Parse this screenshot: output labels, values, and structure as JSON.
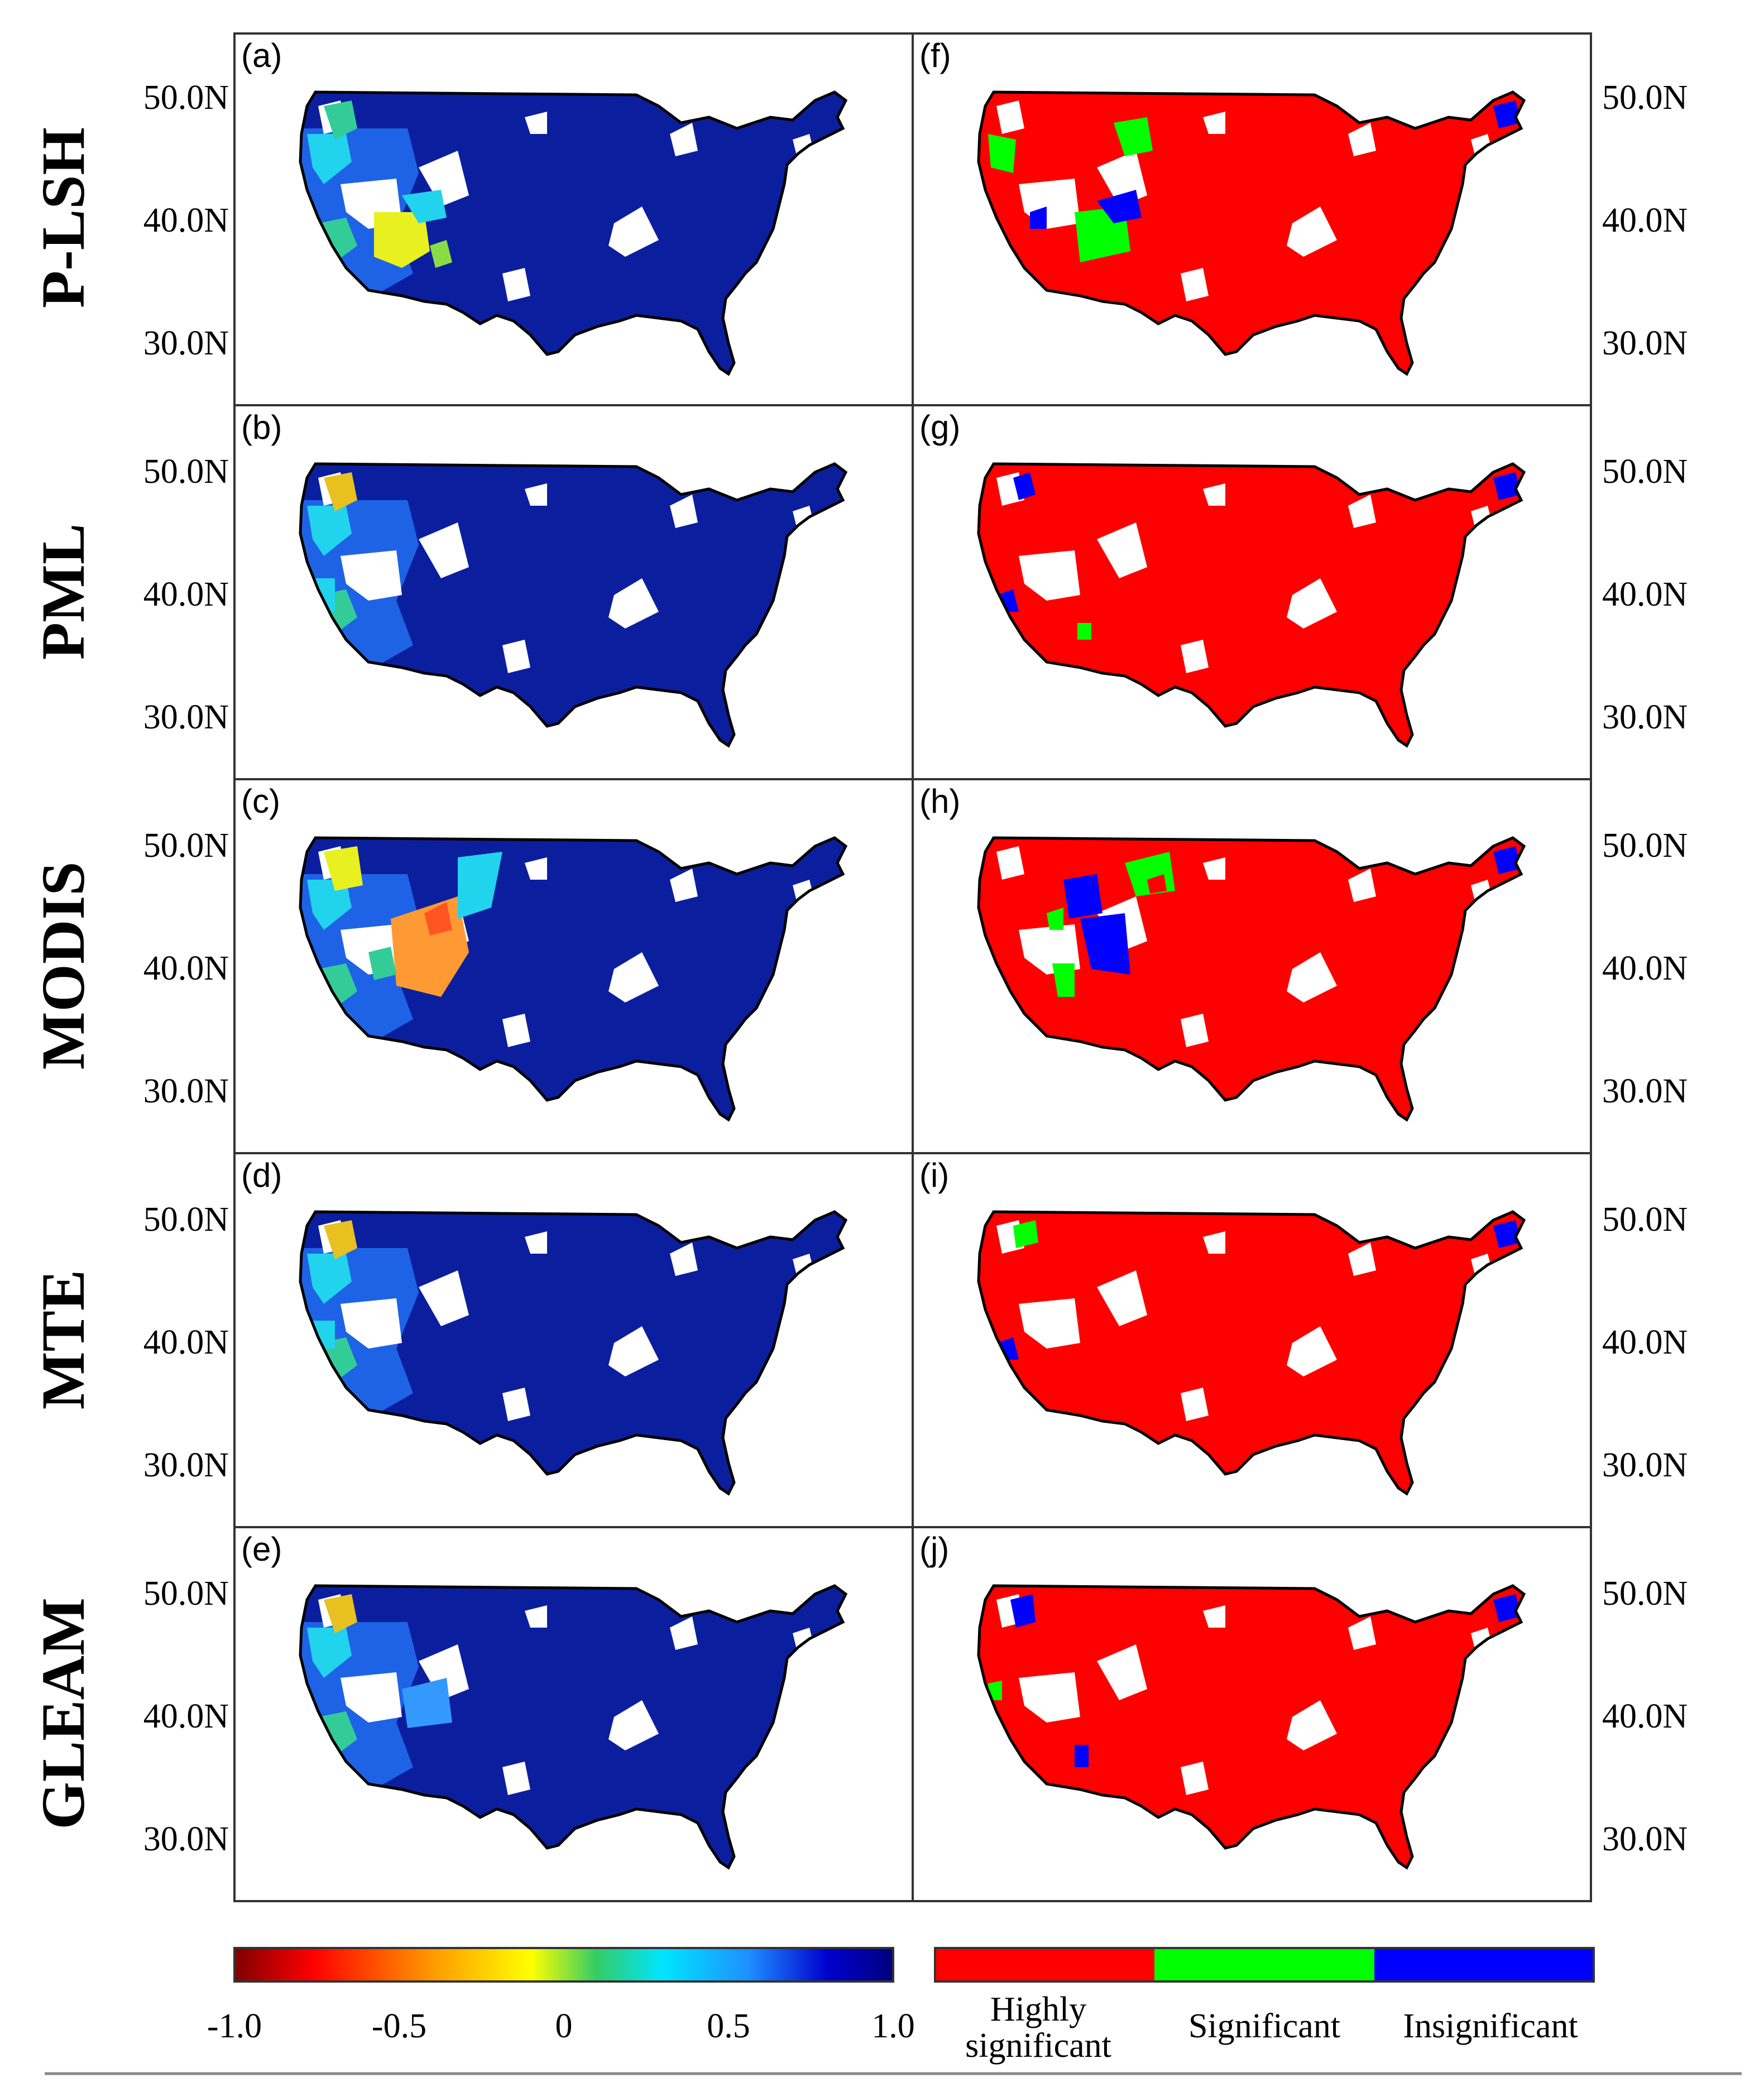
{
  "figure": {
    "rows": [
      {
        "label": "P-LSH",
        "left_panel": "(a)",
        "right_panel": "(f)"
      },
      {
        "label": "PML",
        "left_panel": "(b)",
        "right_panel": "(g)"
      },
      {
        "label": "MODIS",
        "left_panel": "(c)",
        "right_panel": "(h)"
      },
      {
        "label": "MTE",
        "left_panel": "(d)",
        "right_panel": "(i)"
      },
      {
        "label": "GLEAM",
        "left_panel": "(e)",
        "right_panel": "(j)"
      }
    ],
    "lat_ticks": [
      "50.0N",
      "40.0N",
      "30.0N"
    ],
    "colorbar": {
      "ticks": [
        "-1.0",
        "-0.5",
        "0",
        "0.5",
        "1.0"
      ],
      "range": [
        -1.0,
        1.0
      ],
      "colors": [
        "#7f0000",
        "#ff0000",
        "#ff9900",
        "#ffff00",
        "#33cc66",
        "#00e5ff",
        "#1e90ff",
        "#0000cd",
        "#00007f"
      ]
    },
    "significance_legend": {
      "items": [
        {
          "label_line1": "Highly",
          "label_line2": "significant",
          "color": "#ff0000"
        },
        {
          "label_line1": "Significant",
          "label_line2": "",
          "color": "#00ff00"
        },
        {
          "label_line1": "Insignificant",
          "label_line2": "",
          "color": "#0000ff"
        }
      ]
    },
    "map_colors": {
      "high_corr": "#0b1f9e",
      "mid_corr": "#1e63e6",
      "cyan": "#22d3ee",
      "teal": "#33cc99",
      "yellow": "#e8f020",
      "orange": "#ff9933",
      "red_orange": "#ff5522",
      "highly_sig": "#ff0000",
      "sig": "#00ff00",
      "insig": "#0000ff",
      "nodata": "#ffffff"
    }
  }
}
